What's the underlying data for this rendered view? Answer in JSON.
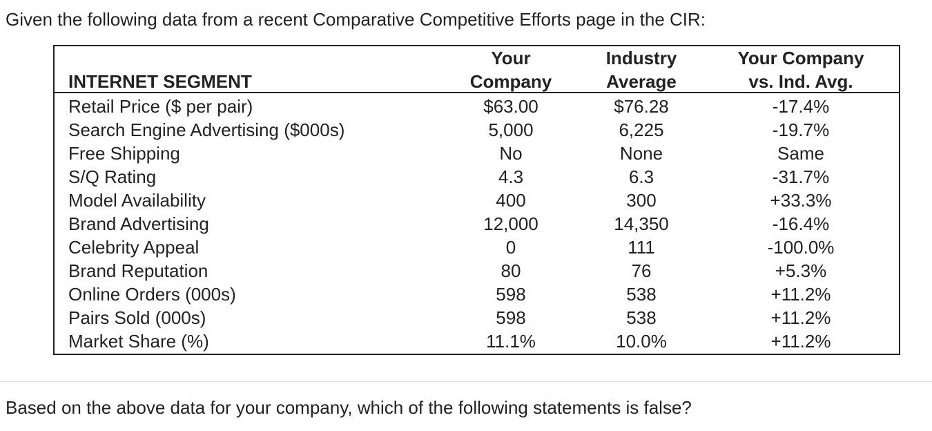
{
  "intro": "Given the following data from a recent Comparative Competitive Efforts page in the CIR:",
  "table": {
    "header": [
      [
        "INTERNET SEGMENT"
      ],
      [
        "Your",
        "Company"
      ],
      [
        "Industry",
        "Average"
      ],
      [
        "Your Company",
        "vs. Ind. Avg."
      ]
    ],
    "rows": [
      [
        "Retail Price ($ per pair)",
        "$63.00",
        "$76.28",
        "-17.4%"
      ],
      [
        "Search Engine Advertising ($000s)",
        "5,000",
        "6,225",
        "-19.7%"
      ],
      [
        "Free Shipping",
        "No",
        "None",
        "Same"
      ],
      [
        "S/Q Rating",
        "4.3",
        "6.3",
        "-31.7%"
      ],
      [
        "Model Availability",
        "400",
        "300",
        "+33.3%"
      ],
      [
        "Brand Advertising",
        "12,000",
        "14,350",
        "-16.4%"
      ],
      [
        "Celebrity Appeal",
        "0",
        "111",
        "-100.0%"
      ],
      [
        "Brand Reputation",
        "80",
        "76",
        "+5.3%"
      ],
      [
        "Online Orders (000s)",
        "598",
        "538",
        "+11.2%"
      ],
      [
        "Pairs Sold (000s)",
        "598",
        "538",
        "+11.2%"
      ],
      [
        "Market Share (%)",
        "11.1%",
        "10.0%",
        "+11.2%"
      ]
    ]
  },
  "question": "Based on the above data for your company, which of the following statements is false?"
}
